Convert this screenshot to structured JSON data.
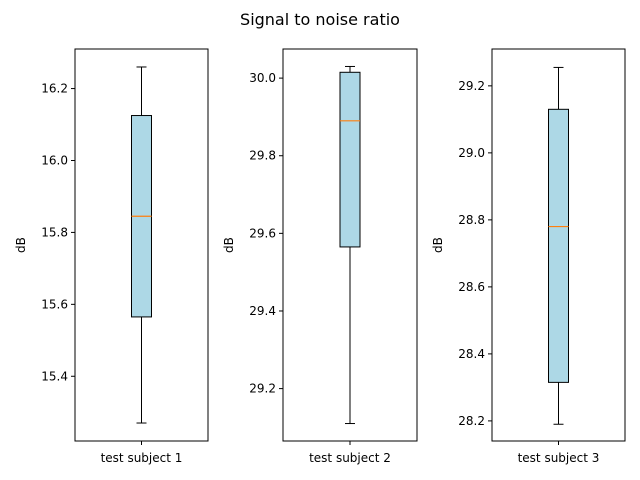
{
  "chart_data": {
    "suptitle": "Signal to noise ratio",
    "box_color": "#add8e6",
    "median_color": "#ff7f0e",
    "panels": [
      {
        "type": "box",
        "category": "test subject 1",
        "ylabel": "dB",
        "ylim": [
          15.22,
          16.31
        ],
        "yticks": [
          15.4,
          15.6,
          15.8,
          16.0,
          16.2
        ],
        "ytick_labels": [
          "15.4",
          "15.6",
          "15.8",
          "16.0",
          "16.2"
        ],
        "whisker_low": 15.27,
        "q1": 15.565,
        "median": 15.845,
        "q3": 16.125,
        "whisker_high": 16.26
      },
      {
        "type": "box",
        "category": "test subject 2",
        "ylabel": "dB",
        "ylim": [
          29.065,
          30.075
        ],
        "yticks": [
          29.2,
          29.4,
          29.6,
          29.8,
          30.0
        ],
        "ytick_labels": [
          "29.2",
          "29.4",
          "29.6",
          "29.8",
          "30.0"
        ],
        "whisker_low": 29.11,
        "q1": 29.565,
        "median": 29.89,
        "q3": 30.015,
        "whisker_high": 30.03
      },
      {
        "type": "box",
        "category": "test subject 3",
        "ylabel": "dB",
        "ylim": [
          28.14,
          29.31
        ],
        "yticks": [
          28.2,
          28.4,
          28.6,
          28.8,
          29.0,
          29.2
        ],
        "ytick_labels": [
          "28.2",
          "28.4",
          "28.6",
          "28.8",
          "29.0",
          "29.2"
        ],
        "whisker_low": 28.19,
        "q1": 28.315,
        "median": 28.78,
        "q3": 29.13,
        "whisker_high": 29.255
      }
    ]
  }
}
